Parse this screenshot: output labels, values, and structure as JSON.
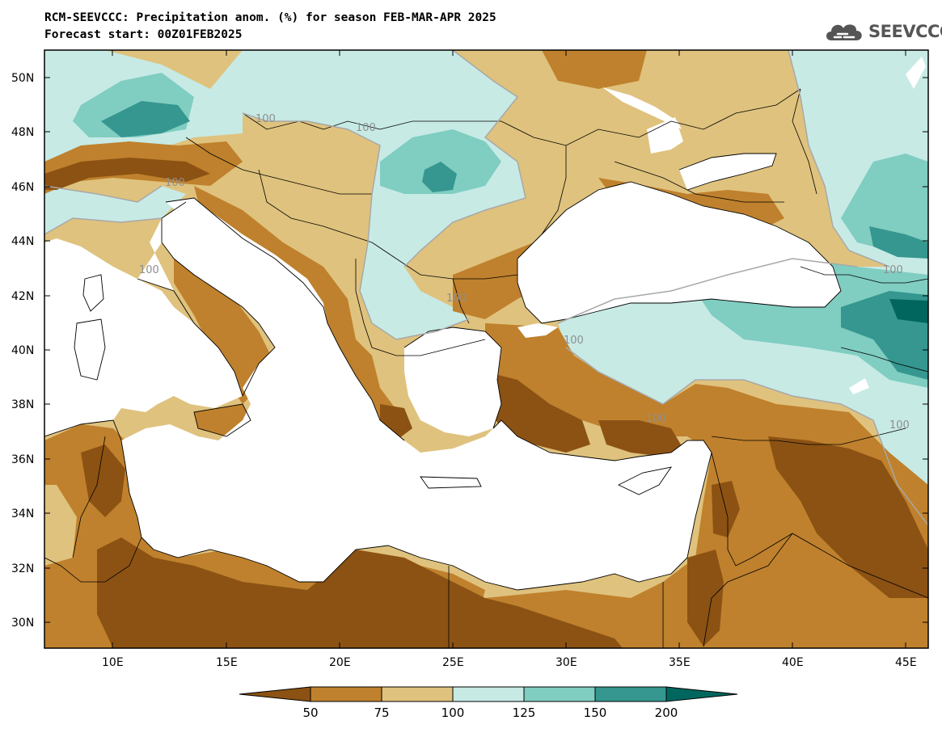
{
  "header": {
    "title_line1": "RCM-SEEVCCC: Precipitation anom. (%) for season FEB-MAR-APR 2025",
    "title_line2": "Forecast start: 00Z01FEB2025"
  },
  "logo": {
    "text": "SEEVCCC",
    "icon": "cloud-icon"
  },
  "axes": {
    "lat_labels": [
      "50N",
      "48N",
      "46N",
      "44N",
      "42N",
      "40N",
      "38N",
      "36N",
      "34N",
      "32N",
      "30N"
    ],
    "lon_labels": [
      "10E",
      "15E",
      "20E",
      "25E",
      "30E",
      "35E",
      "40E",
      "45E"
    ]
  },
  "contour_label": "100",
  "colorbar": {
    "colors": [
      "#8c5213",
      "#bf812d",
      "#dfc27d",
      "#c7eae5",
      "#80cdc1",
      "#35978f",
      "#01665e"
    ],
    "labels": [
      "50",
      "75",
      "100",
      "125",
      "150",
      "200"
    ]
  },
  "palette": {
    "land_dark_brown": "#8c5213",
    "land_brown": "#bf812d",
    "land_tan": "#dfc27d",
    "light_teal": "#c7eae5",
    "mid_teal": "#80cdc1",
    "dark_teal": "#35978f",
    "darkest_teal": "#01665e",
    "water": "#ffffff"
  }
}
